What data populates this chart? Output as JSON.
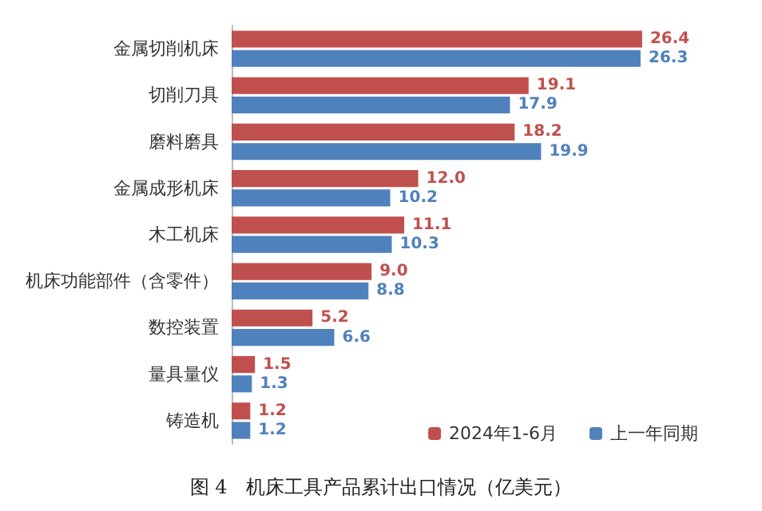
{
  "chart_data": {
    "type": "bar",
    "orientation": "horizontal",
    "title": "图 4　机床工具产品累计出口情况（亿美元）",
    "categories": [
      "金属切削机床",
      "切削刀具",
      "磨料磨具",
      "金属成形机床",
      "木工机床",
      "机床功能部件（含零件）",
      "数控装置",
      "量具量仪",
      "铸造机"
    ],
    "series": [
      {
        "name": "2024年1-6月",
        "color": "#c0504d",
        "values": [
          26.4,
          19.1,
          18.2,
          12.0,
          11.1,
          9.0,
          5.2,
          1.5,
          1.2
        ],
        "value_labels": [
          "26.4",
          "19.1",
          "18.2",
          "12.0",
          "11.1",
          "9.0",
          "5.2",
          "1.5",
          "1.2"
        ]
      },
      {
        "name": "上一年同期",
        "color": "#4f81bd",
        "values": [
          26.3,
          17.9,
          19.9,
          10.2,
          10.3,
          8.8,
          6.6,
          1.3,
          1.2
        ],
        "value_labels": [
          "26.3",
          "17.9",
          "19.9",
          "10.2",
          "10.3",
          "8.8",
          "6.6",
          "1.3",
          "1.2"
        ]
      }
    ],
    "tick_labels": "y",
    "legend": "bottom right"
  }
}
